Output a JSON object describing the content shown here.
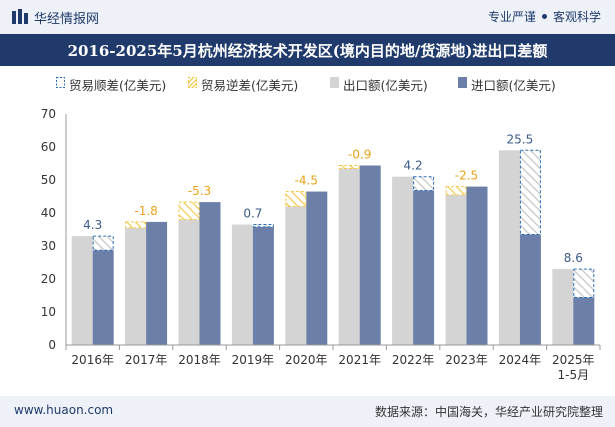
{
  "header": {
    "brand": "华经情报网",
    "tagline_left": "专业严谨",
    "tagline_right": "客观科学"
  },
  "footer": {
    "site": "www.huaon.com",
    "source": "数据来源：中国海关，华经产业研究院整理"
  },
  "colors": {
    "export": "#d4d4d4",
    "import": "#6b7fa8",
    "surplus_border": "#2b6fb5",
    "deficit_hatch": "#f2c94c",
    "surplus_label": "#3b5a8a",
    "deficit_label": "#e8a317",
    "header_bg": "#1f3a6b"
  },
  "chart_data": {
    "type": "bar",
    "title": "2016-2025年5月杭州经济技术开发区(境内目的地/货源地)进出口差额",
    "legend": [
      "贸易顺差(亿美元)",
      "贸易逆差(亿美元)",
      "出口额(亿美元)",
      "进口额(亿美元)"
    ],
    "legend_position": "top",
    "categories": [
      "2016年",
      "2017年",
      "2018年",
      "2019年",
      "2020年",
      "2021年",
      "2022年",
      "2023年",
      "2024年",
      "2025年 1-5月"
    ],
    "category_lines": [
      [
        "2016年"
      ],
      [
        "2017年"
      ],
      [
        "2018年"
      ],
      [
        "2019年"
      ],
      [
        "2020年"
      ],
      [
        "2021年"
      ],
      [
        "2022年"
      ],
      [
        "2023年"
      ],
      [
        "2024年"
      ],
      [
        "2025年",
        "1-5月"
      ]
    ],
    "series": [
      {
        "name": "出口额(亿美元)",
        "values": [
          33.0,
          35.5,
          38.0,
          36.5,
          42.0,
          53.5,
          51.0,
          45.5,
          59.0,
          23.0
        ]
      },
      {
        "name": "进口额(亿美元)",
        "values": [
          28.7,
          37.3,
          43.3,
          35.8,
          46.5,
          54.4,
          46.8,
          48.0,
          33.5,
          14.4
        ]
      }
    ],
    "balance": [
      4.3,
      -1.8,
      -5.3,
      0.7,
      -4.5,
      -0.9,
      4.2,
      -2.5,
      25.5,
      8.6
    ],
    "balance_labels": [
      "4.3",
      "-1.8",
      "-5.3",
      "0.7",
      "-4.5",
      "-0.9",
      "4.2",
      "-2.5",
      "25.5",
      "8.6"
    ],
    "ylim": [
      0,
      70
    ],
    "yticks": [
      0,
      10,
      20,
      30,
      40,
      50,
      60,
      70
    ],
    "grid": false
  }
}
